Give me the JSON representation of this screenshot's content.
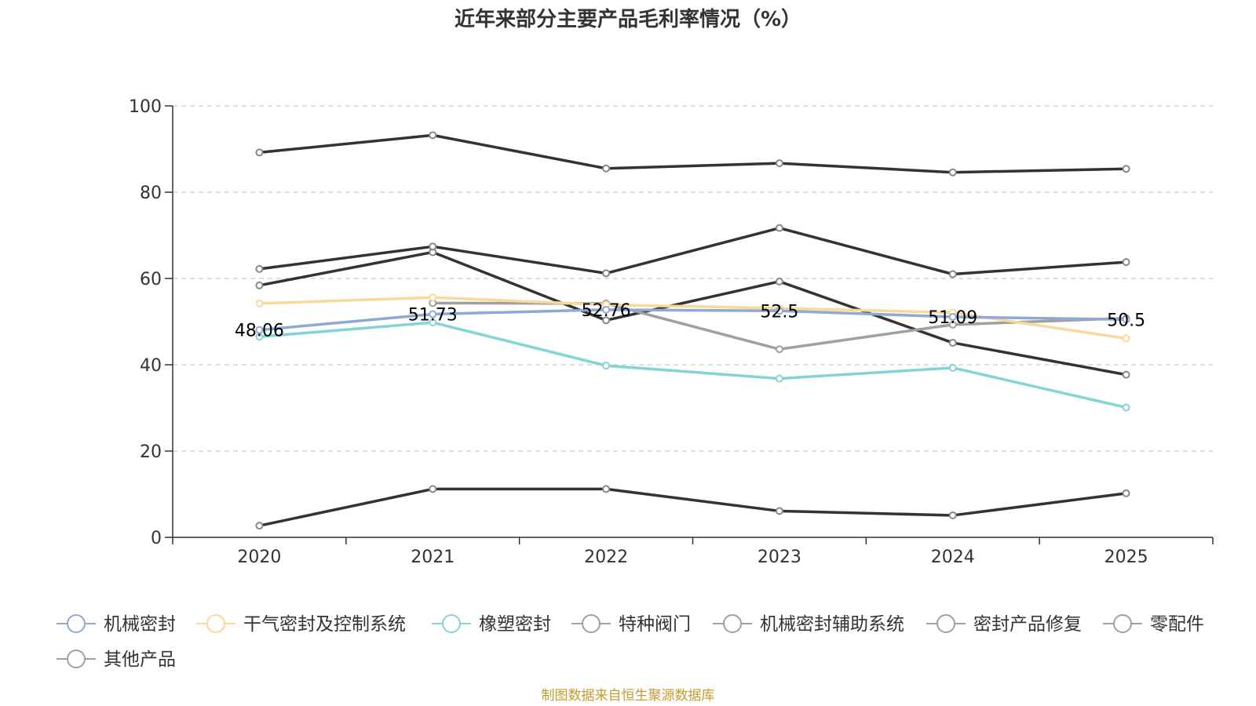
{
  "chart_data": {
    "type": "line",
    "title": "近年来部分主要产品毛利率情况（%）",
    "xlabel": "",
    "ylabel": "",
    "ylim": [
      0,
      100
    ],
    "yticks": [
      0,
      20,
      40,
      60,
      80,
      100
    ],
    "x": [
      "2020",
      "2021",
      "2022",
      "2023",
      "2024",
      "2025"
    ],
    "grid": true,
    "legend_position": "bottom",
    "series": [
      {
        "name": "机械密封",
        "color": "#8ea9d6",
        "values": [
          48.06,
          51.73,
          52.76,
          52.5,
          51.09,
          50.5
        ],
        "show_labels": true,
        "labels": [
          "48.06",
          "51.73",
          "52.76",
          "52.5",
          "51.09",
          "50.5"
        ]
      },
      {
        "name": "干气密封及控制系统",
        "color": "#f9d99a",
        "values": [
          54.2,
          55.6,
          53.9,
          53.1,
          52.1,
          46.1
        ]
      },
      {
        "name": "橡塑密封",
        "color": "#84d3d6",
        "values": [
          46.5,
          49.8,
          39.8,
          36.8,
          39.3,
          30.1
        ]
      },
      {
        "name": "特种阀门",
        "color": "#333333",
        "values": [
          89.2,
          93.2,
          85.5,
          86.7,
          84.6,
          85.4
        ]
      },
      {
        "name": "机械密封辅助系统",
        "color": "#333333",
        "values": [
          62.2,
          67.4,
          61.2,
          71.7,
          61.0,
          63.8
        ]
      },
      {
        "name": "密封产品修复",
        "color": "#a0a0a0",
        "values": [
          null,
          54.3,
          54.2,
          43.6,
          49.3,
          50.8
        ]
      },
      {
        "name": "零配件",
        "color": "#333333",
        "values": [
          58.4,
          66.1,
          50.3,
          59.3,
          45.1,
          37.7
        ]
      },
      {
        "name": "其他产品",
        "color": "#333333",
        "values": [
          2.7,
          11.2,
          11.2,
          6.1,
          5.1,
          10.2
        ]
      }
    ]
  },
  "source_note": "制图数据来自恒生聚源数据库"
}
